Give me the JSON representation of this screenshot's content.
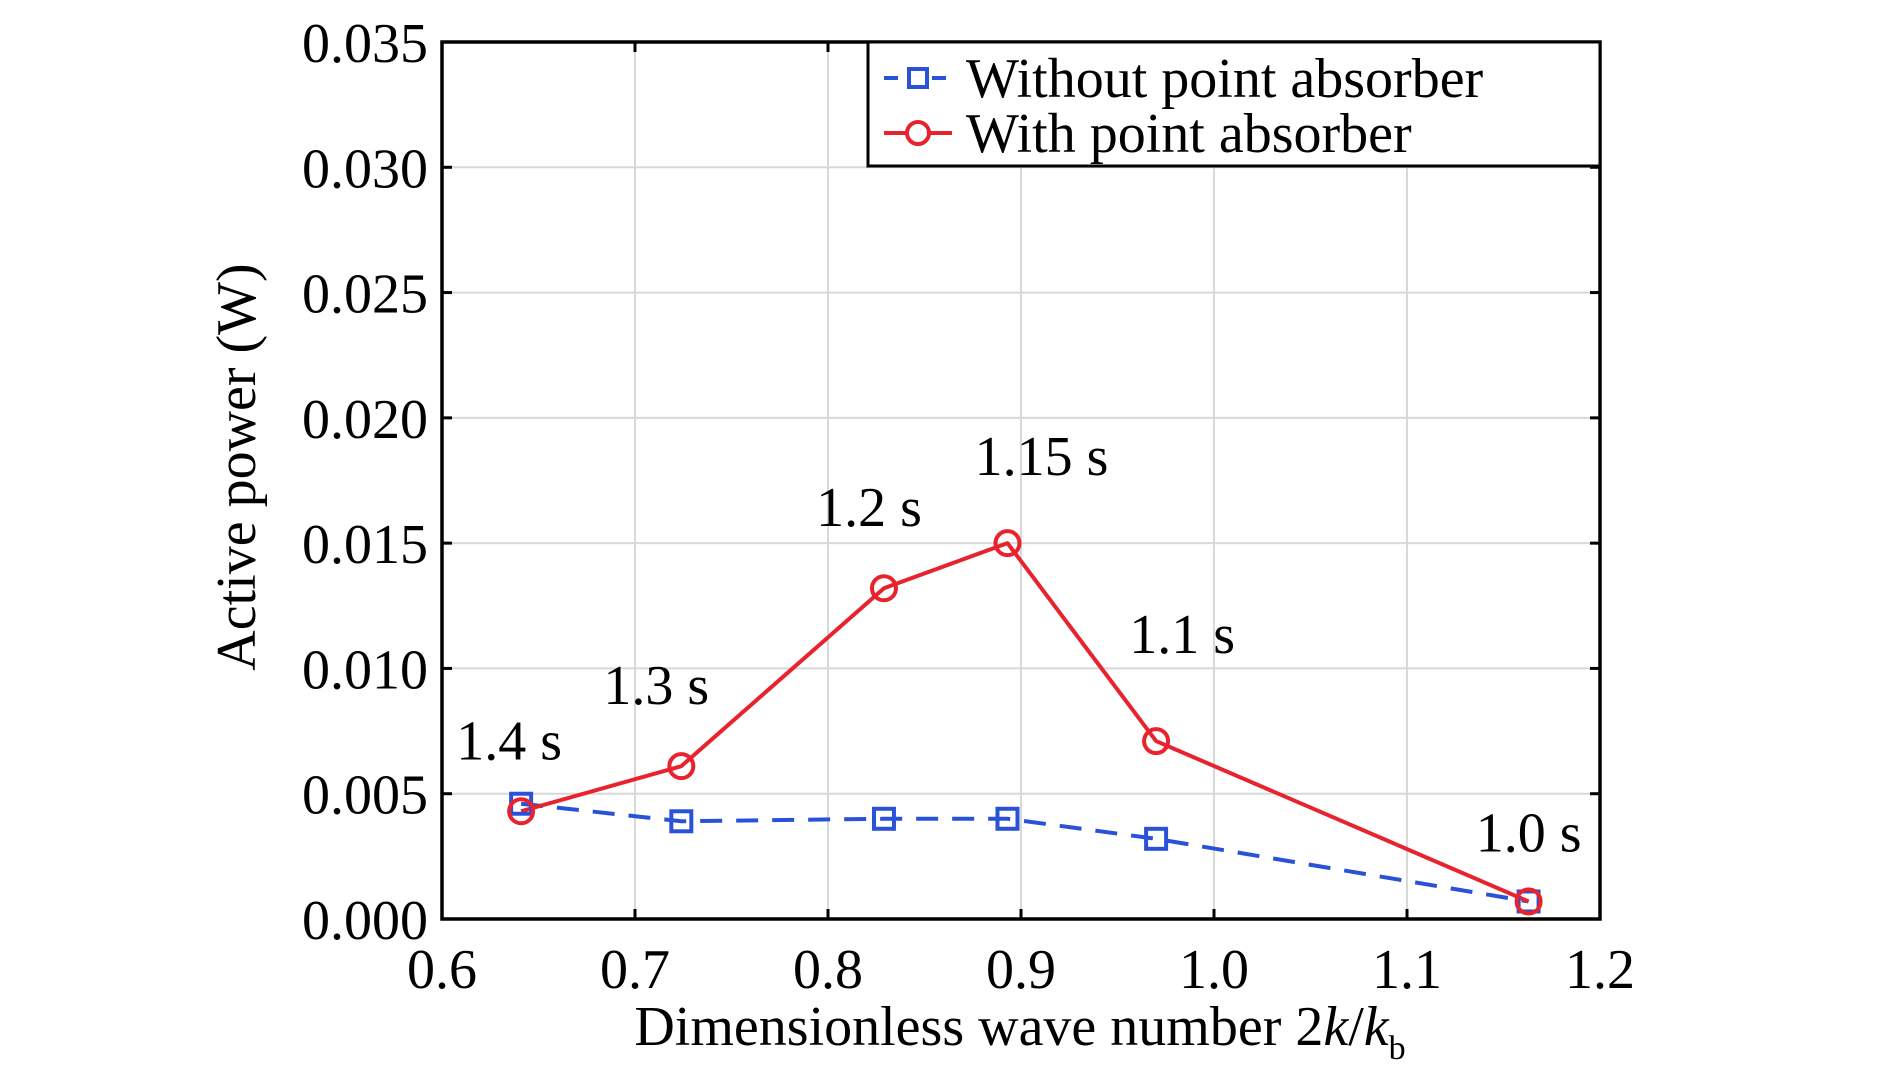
{
  "chart_data": {
    "type": "line",
    "title": "",
    "xlabel": "Dimensionless wave number 2",
    "xlabel_k": "k",
    "xlabel_slash": "/",
    "xlabel_kb": "k",
    "xlabel_sub": "b",
    "ylabel": "Active power (W)",
    "xlim": [
      0.6,
      1.2
    ],
    "ylim": [
      0.0,
      0.035
    ],
    "xticks": [
      "0.6",
      "0.7",
      "0.8",
      "0.9",
      "1.0",
      "1.1",
      "1.2"
    ],
    "yticks": [
      "0.000",
      "0.005",
      "0.010",
      "0.015",
      "0.020",
      "0.025",
      "0.030",
      "0.035"
    ],
    "grid": true,
    "legend_position": "top-right",
    "series": [
      {
        "name": "Without point absorber",
        "color": "#2a52d8",
        "style": "dashed",
        "marker": "square",
        "x": [
          0.641,
          0.724,
          0.829,
          0.893,
          0.97,
          1.163
        ],
        "y": [
          0.0046,
          0.0039,
          0.004,
          0.004,
          0.0032,
          0.0007
        ]
      },
      {
        "name": "With point absorber",
        "color": "#e8232e",
        "style": "solid",
        "marker": "circle",
        "x": [
          0.641,
          0.724,
          0.829,
          0.893,
          0.97,
          1.163
        ],
        "y": [
          0.0043,
          0.0061,
          0.0132,
          0.015,
          0.0071,
          0.0007
        ]
      }
    ],
    "annotations": [
      {
        "text": "1.4 s",
        "x": 0.641,
        "y": 0.0043
      },
      {
        "text": "1.3 s",
        "x": 0.724,
        "y": 0.0061
      },
      {
        "text": "1.2 s",
        "x": 0.829,
        "y": 0.0132
      },
      {
        "text": "1.15 s",
        "x": 0.893,
        "y": 0.015
      },
      {
        "text": "1.1 s",
        "x": 0.97,
        "y": 0.0071
      },
      {
        "text": "1.0 s",
        "x": 1.163,
        "y": 0.0007
      }
    ]
  }
}
